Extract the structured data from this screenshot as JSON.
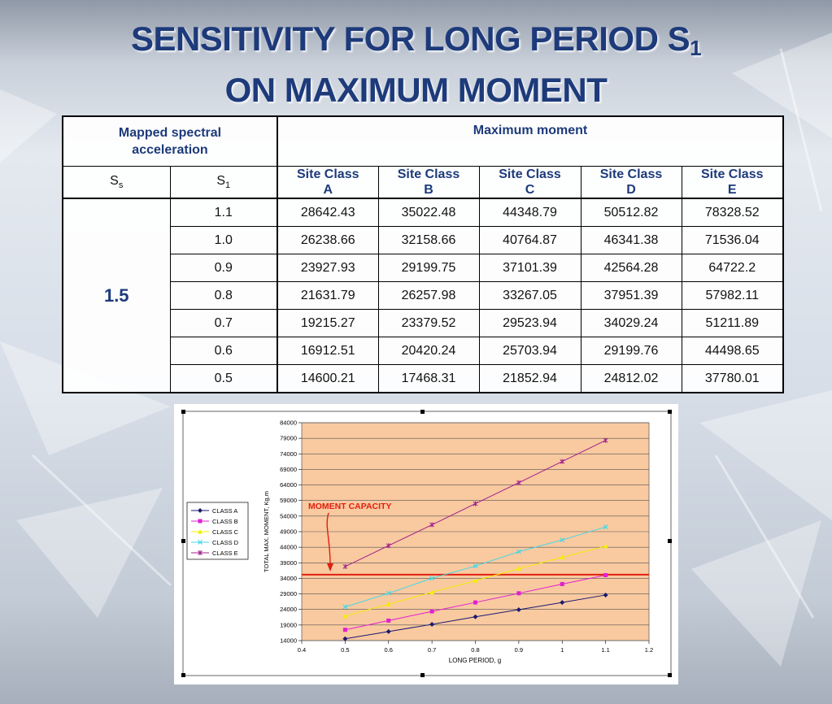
{
  "title": {
    "line1_main": "SENSITIVITY FOR LONG PERIOD S",
    "line1_sub": "1",
    "line2": "ON MAXIMUM MOMENT"
  },
  "table": {
    "header_mapped": "Mapped spectral acceleration",
    "header_max": "Maximum moment",
    "ss_label": "S",
    "ss_sub": "s",
    "s1_label": "S",
    "s1_sub": "1",
    "site_classes": [
      {
        "line1": "Site Class",
        "line2": "A"
      },
      {
        "line1": "Site Class",
        "line2": "B"
      },
      {
        "line1": "Site Class",
        "line2": "C"
      },
      {
        "line1": "Site Class",
        "line2": "D"
      },
      {
        "line1": "Site Class",
        "line2": "E"
      }
    ],
    "ss_value": "1.5",
    "rows": [
      {
        "s1": "1.1",
        "values": [
          "28642.43",
          "35022.48",
          "44348.79",
          "50512.82",
          "78328.52"
        ]
      },
      {
        "s1": "1.0",
        "values": [
          "26238.66",
          "32158.66",
          "40764.87",
          "46341.38",
          "71536.04"
        ]
      },
      {
        "s1": "0.9",
        "values": [
          "23927.93",
          "29199.75",
          "37101.39",
          "42564.28",
          "64722.2"
        ]
      },
      {
        "s1": "0.8",
        "values": [
          "21631.79",
          "26257.98",
          "33267.05",
          "37951.39",
          "57982.11"
        ]
      },
      {
        "s1": "0.7",
        "values": [
          "19215.27",
          "23379.52",
          "29523.94",
          "34029.24",
          "51211.89"
        ]
      },
      {
        "s1": "0.6",
        "values": [
          "16912.51",
          "20420.24",
          "25703.94",
          "29199.76",
          "44498.65"
        ]
      },
      {
        "s1": "0.5",
        "values": [
          "14600.21",
          "17468.31",
          "21852.94",
          "24812.02",
          "37780.01"
        ]
      }
    ]
  },
  "chart_data": {
    "type": "line",
    "title": "",
    "xlabel": "LONG PERIOD, g",
    "ylabel": "TOTAL MAX. MOMENT, Kg,m",
    "xlim": [
      0.4,
      1.2
    ],
    "ylim": [
      14000,
      84000
    ],
    "xticks": [
      "0.4",
      "0.5",
      "0.6",
      "0.7",
      "0.8",
      "0.9",
      "1",
      "1.1",
      "1.2"
    ],
    "yticks": [
      "14000",
      "19000",
      "24000",
      "29000",
      "34000",
      "39000",
      "44000",
      "49000",
      "54000",
      "59000",
      "64000",
      "69000",
      "74000",
      "79000",
      "84000"
    ],
    "grid": "horizontal",
    "legend_position": "left",
    "plot_background": "#f9c9a0",
    "x": [
      0.5,
      0.6,
      0.7,
      0.8,
      0.9,
      1.0,
      1.1
    ],
    "series": [
      {
        "name": "CLASS A",
        "color": "#1a1a6e",
        "marker": "diamond",
        "values": [
          14600.21,
          16912.51,
          19215.27,
          21631.79,
          23927.93,
          26238.66,
          28642.43
        ]
      },
      {
        "name": "CLASS B",
        "color": "#e020d0",
        "marker": "square",
        "values": [
          17468.31,
          20420.24,
          23379.52,
          26257.98,
          29199.75,
          32158.66,
          35022.48
        ]
      },
      {
        "name": "CLASS C",
        "color": "#f2f000",
        "marker": "triangle",
        "values": [
          21852.94,
          25703.94,
          29523.94,
          33267.05,
          37101.39,
          40764.87,
          44348.79
        ]
      },
      {
        "name": "CLASS D",
        "color": "#40d8e8",
        "marker": "x",
        "values": [
          24812.02,
          29199.76,
          34029.24,
          37951.39,
          42564.28,
          46341.38,
          50512.82
        ]
      },
      {
        "name": "CLASS E",
        "color": "#a0208a",
        "marker": "star",
        "values": [
          37780.01,
          44498.65,
          51211.89,
          57982.11,
          64722.2,
          71536.04,
          78328.52
        ]
      }
    ],
    "annotation": {
      "text": "MOMENT CAPACITY",
      "color": "#e02010",
      "value": 35200
    }
  }
}
